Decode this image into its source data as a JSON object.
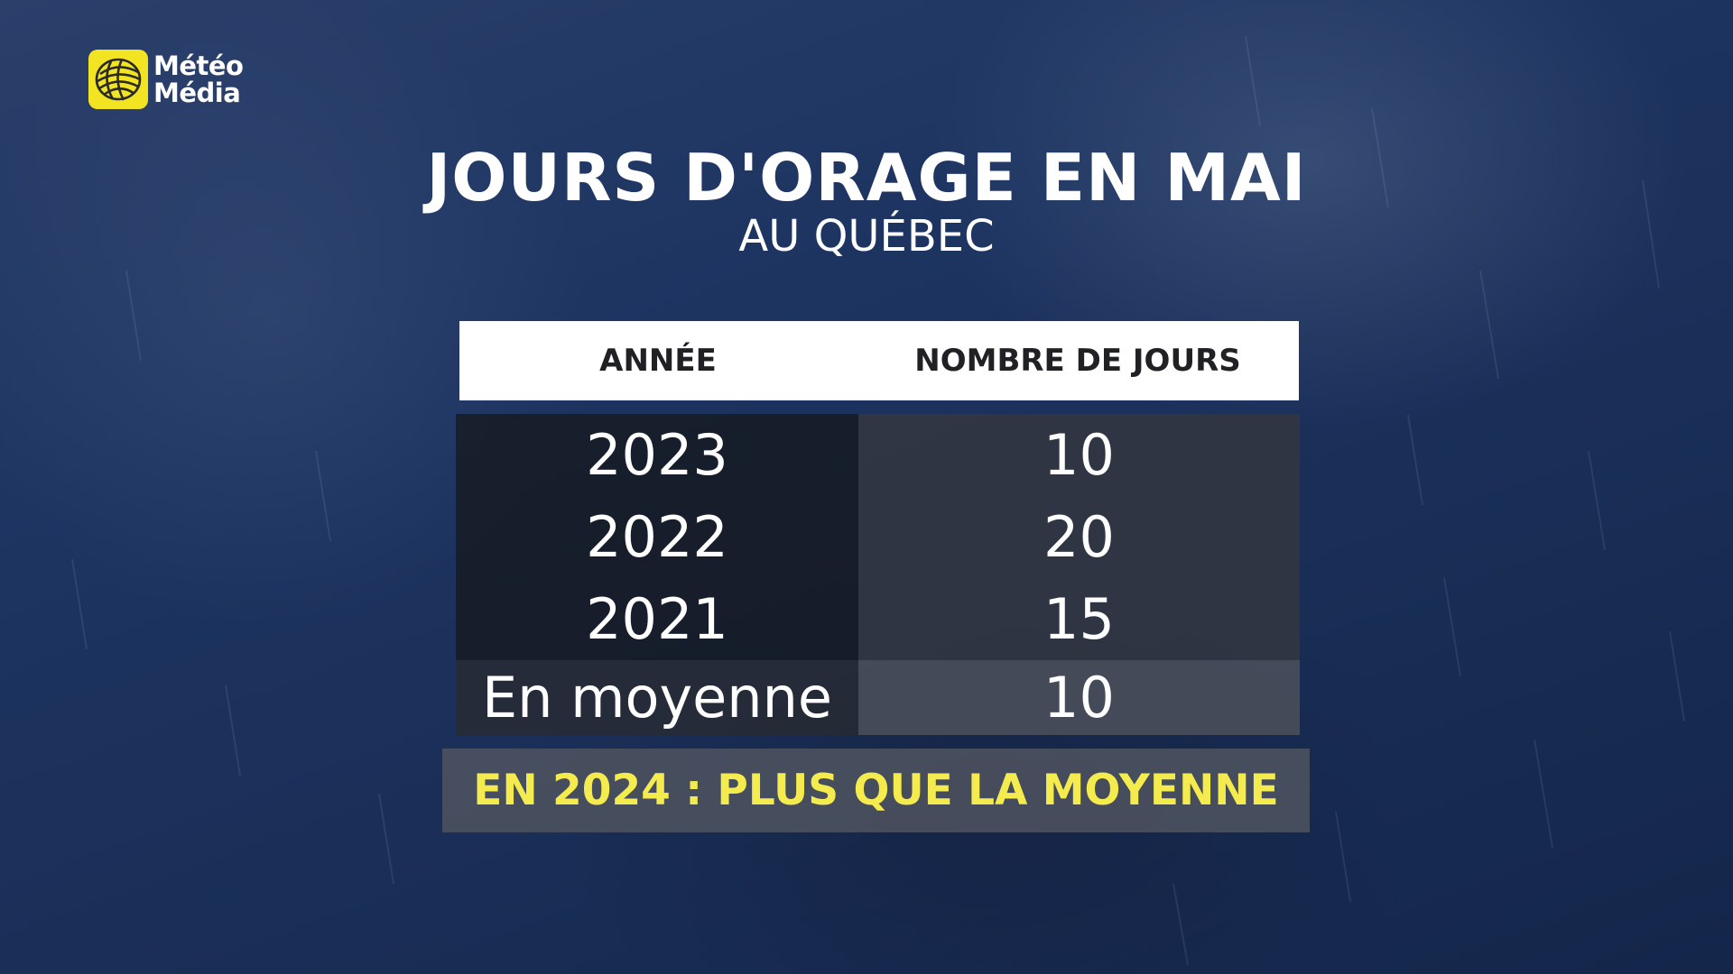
{
  "brand": {
    "line1": "Météo",
    "line2": "Média",
    "logo_icon": "globe-icon",
    "logo_color": "#f2e323"
  },
  "chart_data": {
    "type": "table",
    "title": "JOURS D'ORAGE EN MAI",
    "subtitle": "AU QUÉBEC",
    "columns": [
      "ANNÉE",
      "NOMBRE DE JOURS"
    ],
    "rows": [
      {
        "label": "2023",
        "value": "10"
      },
      {
        "label": "2022",
        "value": "20"
      },
      {
        "label": "2021",
        "value": "15"
      },
      {
        "label": "En moyenne",
        "value": "10"
      }
    ],
    "annotation": "EN 2024 : PLUS QUE LA MOYENNE"
  },
  "colors": {
    "annotation_text": "#f4ec4f",
    "header_bg": "#ffffff",
    "background": "#1d3461"
  }
}
